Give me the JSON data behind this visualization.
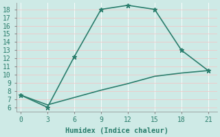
{
  "title": "",
  "xlabel": "Humidex (Indice chaleur)",
  "line1_x": [
    0,
    3,
    6,
    9,
    12,
    15,
    18,
    21
  ],
  "line1_y": [
    7.5,
    6.0,
    12.2,
    18.0,
    18.5,
    18.0,
    13.0,
    10.5
  ],
  "line2_x": [
    0,
    3,
    6,
    9,
    12,
    15,
    18,
    21
  ],
  "line2_y": [
    7.5,
    6.3,
    7.2,
    8.1,
    8.9,
    9.8,
    10.2,
    10.5
  ],
  "line_color": "#2a7d6c",
  "bg_color": "#ceeae6",
  "grid_color_major": "#f0c8c8",
  "grid_color_minor": "#ffffff",
  "xlim": [
    -0.5,
    22
  ],
  "ylim": [
    5.5,
    18.8
  ],
  "xticks": [
    0,
    3,
    6,
    9,
    12,
    15,
    18,
    21
  ],
  "yticks": [
    6,
    7,
    8,
    9,
    10,
    11,
    12,
    13,
    14,
    15,
    16,
    17,
    18
  ],
  "marker": "*",
  "marker_size": 5,
  "linewidth": 1.2,
  "label_fontsize": 7.5,
  "tick_fontsize": 7
}
